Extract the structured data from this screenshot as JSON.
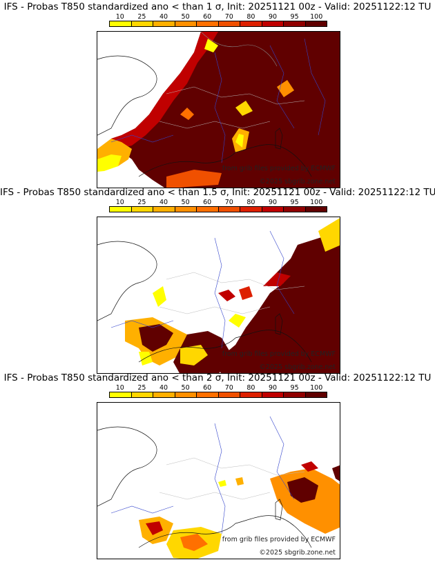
{
  "colorbar": {
    "labels": [
      "10",
      "25",
      "40",
      "50",
      "60",
      "70",
      "80",
      "90",
      "95",
      "100"
    ],
    "colors": [
      "#ffff00",
      "#ffd700",
      "#ffb000",
      "#ff9000",
      "#ff7000",
      "#f05000",
      "#dd2000",
      "#c00000",
      "#900000",
      "#600000"
    ]
  },
  "panels": [
    {
      "title": "IFS - Probas T850  standardized ano < than 1 σ, Init: 20251121 00z - Valid: 20251122:12 TU",
      "credit": "from grib files provided by ECMWF",
      "copyright": "©2025 sbgrib.zone.net"
    },
    {
      "title": "IFS - Probas T850  standardized ano < than 1.5 σ, Init: 20251121 00z - Valid: 20251122:12 TU",
      "credit": "from grib files provided by ECMWF",
      "copyright": "©2025 sbgrib.zone.net"
    },
    {
      "title": "IFS - Probas T850  standardized ano < than 2 σ, Init: 20251121 00z - Valid: 20251122:12 TU",
      "credit": "from grib files provided by ECMWF",
      "copyright": "©2025 sbgrib.zone.net"
    }
  ]
}
